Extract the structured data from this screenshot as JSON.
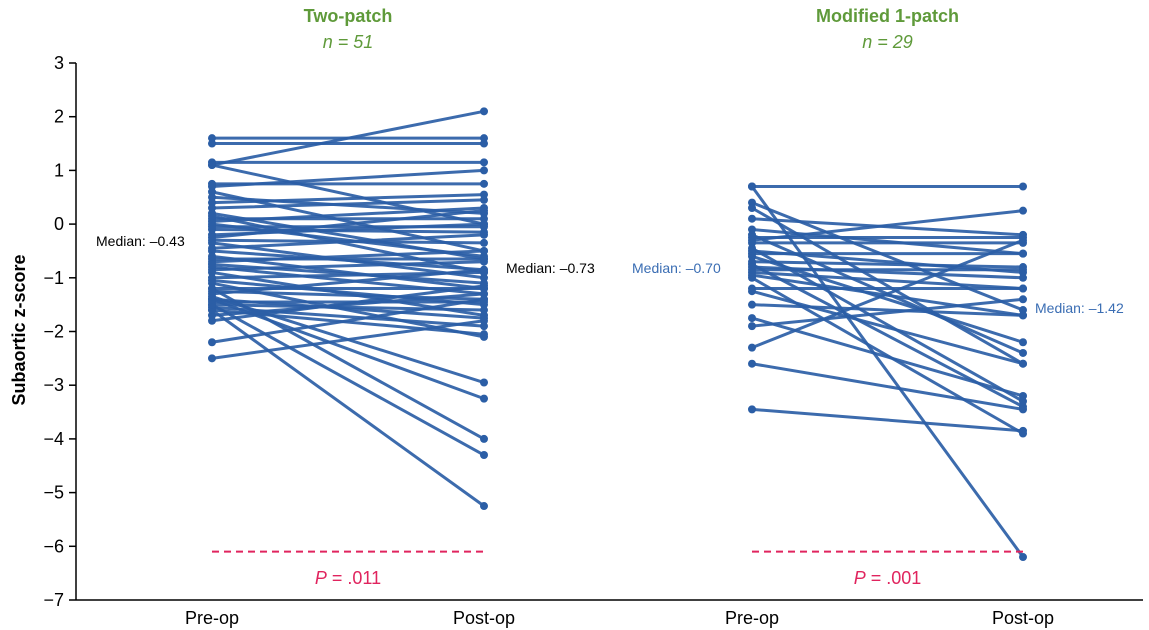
{
  "colors": {
    "series": "#2b5ea6",
    "title": "#5f9a3a",
    "pvalue": "#e0245e",
    "median_dark": "#000000",
    "median_blue": "#3a6db3"
  },
  "chart_data": {
    "type": "line",
    "ylabel": "Subaortic z-score",
    "ylim": [
      -7,
      3
    ],
    "yticks": [
      "3",
      "2",
      "1",
      "0",
      "−1",
      "−2",
      "−3",
      "−4",
      "−5",
      "−6",
      "−7"
    ],
    "grid": false,
    "panels": [
      {
        "title": "Two-patch",
        "n_label": "n = 51",
        "categories": [
          "Pre-op",
          "Post-op"
        ],
        "median_pre_label": "Median: –0.43",
        "median_post_label": "Median: –0.73",
        "p_label_prefix": "P",
        "p_label_value": " = .011",
        "p_line_y": -6.1,
        "pairs": [
          [
            1.6,
            1.6
          ],
          [
            1.5,
            1.5
          ],
          [
            1.15,
            1.15
          ],
          [
            1.1,
            2.1
          ],
          [
            1.1,
            0.0
          ],
          [
            0.75,
            0.75
          ],
          [
            0.7,
            1.0
          ],
          [
            0.6,
            -0.5
          ],
          [
            0.5,
            0.2
          ],
          [
            0.4,
            0.55
          ],
          [
            0.3,
            0.45
          ],
          [
            0.2,
            -0.65
          ],
          [
            0.1,
            0.1
          ],
          [
            0.05,
            0.3
          ],
          [
            0.0,
            -0.6
          ],
          [
            -0.05,
            -0.05
          ],
          [
            -0.1,
            -0.15
          ],
          [
            -0.2,
            0.0
          ],
          [
            -0.3,
            -0.35
          ],
          [
            -0.35,
            -1.0
          ],
          [
            -0.45,
            -0.2
          ],
          [
            -0.5,
            -0.85
          ],
          [
            -0.6,
            -1.2
          ],
          [
            -0.65,
            -0.65
          ],
          [
            -0.7,
            -0.5
          ],
          [
            -0.8,
            -1.3
          ],
          [
            -0.85,
            -0.7
          ],
          [
            -0.9,
            -1.7
          ],
          [
            -1.0,
            -0.9
          ],
          [
            -1.05,
            -1.5
          ],
          [
            -1.1,
            -2.1
          ],
          [
            -1.2,
            -1.2
          ],
          [
            -1.25,
            -1.4
          ],
          [
            -1.3,
            -0.85
          ],
          [
            -1.4,
            -1.75
          ],
          [
            -1.45,
            -1.45
          ],
          [
            -1.5,
            -1.6
          ],
          [
            -1.55,
            -1.9
          ],
          [
            -1.6,
            -2.05
          ],
          [
            -1.7,
            -1.3
          ],
          [
            -1.8,
            -1.15
          ],
          [
            -1.6,
            -5.25
          ],
          [
            -1.5,
            -4.3
          ],
          [
            -1.4,
            -3.25
          ],
          [
            -1.35,
            -2.95
          ],
          [
            -1.2,
            -4.0
          ],
          [
            -2.2,
            -1.4
          ],
          [
            -2.5,
            -1.8
          ],
          [
            0.15,
            -0.9
          ],
          [
            -0.75,
            -1.1
          ],
          [
            -0.25,
            0.25
          ]
        ]
      },
      {
        "title": "Modified 1-patch",
        "n_label": "n = 29",
        "categories": [
          "Pre-op",
          "Post-op"
        ],
        "median_pre_label": "Median: –0.70",
        "median_post_label": "Median: –1.42",
        "p_label_prefix": "P",
        "p_label_value": " = .001",
        "p_line_y": -6.1,
        "pairs": [
          [
            0.7,
            0.7
          ],
          [
            0.7,
            -6.2
          ],
          [
            0.4,
            -1.6
          ],
          [
            0.3,
            -2.6
          ],
          [
            0.1,
            -0.2
          ],
          [
            -0.1,
            -0.55
          ],
          [
            -0.2,
            -2.4
          ],
          [
            -0.3,
            0.25
          ],
          [
            -0.35,
            -0.35
          ],
          [
            -0.45,
            -3.3
          ],
          [
            -0.5,
            -0.9
          ],
          [
            -0.55,
            -0.55
          ],
          [
            -0.6,
            -2.2
          ],
          [
            -0.7,
            -0.8
          ],
          [
            -0.75,
            -3.4
          ],
          [
            -0.8,
            -1.0
          ],
          [
            -0.85,
            -0.85
          ],
          [
            -0.9,
            -1.2
          ],
          [
            -1.0,
            -3.9
          ],
          [
            -1.2,
            -1.2
          ],
          [
            -1.25,
            -2.6
          ],
          [
            -1.5,
            -1.7
          ],
          [
            -1.75,
            -3.2
          ],
          [
            -1.9,
            -1.4
          ],
          [
            -2.3,
            -0.3
          ],
          [
            -2.6,
            -3.45
          ],
          [
            -3.45,
            -3.85
          ],
          [
            -0.25,
            -0.25
          ],
          [
            -0.95,
            -1.7
          ]
        ]
      }
    ]
  }
}
